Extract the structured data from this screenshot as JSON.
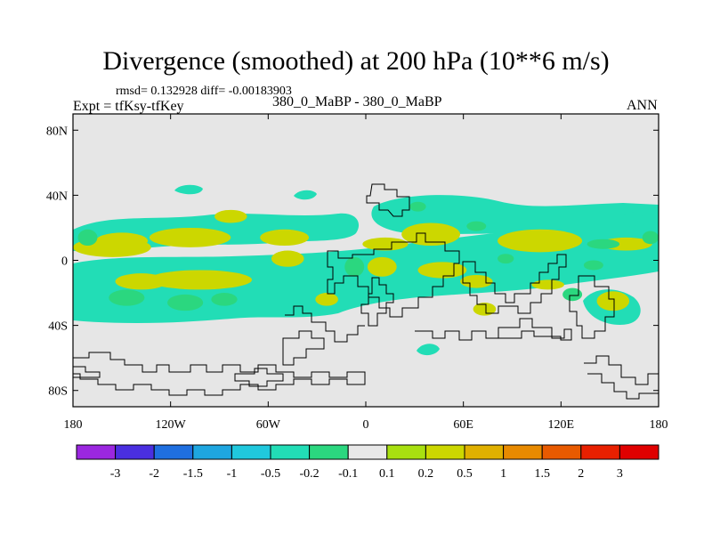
{
  "chart_data": {
    "type": "heatmap",
    "title": "Divergence (smoothed) at 200 hPa (10**6 m/s)",
    "stats_line": "rmsd= 0.132928 diff= -0.00183903",
    "experiment": "Expt = tfKsy-tfKey",
    "case_label": "380_0_MaBP - 380_0_MaBP",
    "season": "ANN",
    "x_axis": {
      "range": [
        -180,
        180
      ],
      "ticks": [
        {
          "value": -180,
          "label": "180"
        },
        {
          "value": -120,
          "label": "120W"
        },
        {
          "value": -60,
          "label": "60W"
        },
        {
          "value": 0,
          "label": "0"
        },
        {
          "value": 60,
          "label": "60E"
        },
        {
          "value": 120,
          "label": "120E"
        },
        {
          "value": 180,
          "label": "180"
        }
      ]
    },
    "y_axis": {
      "range": [
        -90,
        90
      ],
      "ticks": [
        {
          "value": 80,
          "label": "80N"
        },
        {
          "value": 40,
          "label": "40N"
        },
        {
          "value": 0,
          "label": "0"
        },
        {
          "value": -40,
          "label": "40S"
        },
        {
          "value": -80,
          "label": "80S"
        }
      ]
    },
    "colorbar": {
      "labels": [
        "-3",
        "-2",
        "-1.5",
        "-1",
        "-0.5",
        "-0.2",
        "-0.1",
        "0.1",
        "0.2",
        "0.5",
        "1",
        "1.5",
        "2",
        "3"
      ],
      "colors": [
        "#9b27e0",
        "#4a2fe0",
        "#1f6fe0",
        "#1ea6e0",
        "#20c8dd",
        "#22ddb6",
        "#2bd77f",
        "#e8e8e8",
        "#a8e010",
        "#ccd700",
        "#e0b000",
        "#e88a00",
        "#e85a00",
        "#e82000",
        "#e00000"
      ]
    },
    "regions": [
      {
        "value": 0.2,
        "lon": -156,
        "lat": 8,
        "rx": 24,
        "ry": 6
      },
      {
        "value": 0.2,
        "lon": -150,
        "lat": 12,
        "rx": 16,
        "ry": 5
      },
      {
        "value": 0.2,
        "lon": -108,
        "lat": 14,
        "rx": 25,
        "ry": 6
      },
      {
        "value": 0.2,
        "lon": -50,
        "lat": 14,
        "rx": 15,
        "ry": 5
      },
      {
        "value": 0.2,
        "lon": -102,
        "lat": -12,
        "rx": 32,
        "ry": 6
      },
      {
        "value": 0.2,
        "lon": -138,
        "lat": -13,
        "rx": 16,
        "ry": 5
      },
      {
        "value": 0.2,
        "lon": -48,
        "lat": 1,
        "rx": 10,
        "ry": 5
      },
      {
        "value": 0.2,
        "lon": -83,
        "lat": 27,
        "rx": 10,
        "ry": 4
      },
      {
        "value": 0.2,
        "lon": 12,
        "lat": 10,
        "rx": 14,
        "ry": 4
      },
      {
        "value": 0.2,
        "lon": 40,
        "lat": 16,
        "rx": 18,
        "ry": 7
      },
      {
        "value": 0.2,
        "lon": 107,
        "lat": 12,
        "rx": 26,
        "ry": 7
      },
      {
        "value": 0.2,
        "lon": 160,
        "lat": 10,
        "rx": 16,
        "ry": 4
      },
      {
        "value": 0.2,
        "lon": 10,
        "lat": -4,
        "rx": 9,
        "ry": 6
      },
      {
        "value": 0.2,
        "lon": 47,
        "lat": -6,
        "rx": 15,
        "ry": 5
      },
      {
        "value": 0.2,
        "lon": 68,
        "lat": -13,
        "rx": 10,
        "ry": 4
      },
      {
        "value": 0.2,
        "lon": -24,
        "lat": -24,
        "rx": 7,
        "ry": 4
      },
      {
        "value": 0.2,
        "lon": 152,
        "lat": -25,
        "rx": 10,
        "ry": 6
      },
      {
        "value": 0.2,
        "lon": 73,
        "lat": -30,
        "rx": 7,
        "ry": 4
      },
      {
        "value": 0.2,
        "lon": 112,
        "lat": -15,
        "rx": 10,
        "ry": 3
      },
      {
        "value": -0.2,
        "lon": -171,
        "lat": 14,
        "rx": 6,
        "ry": 5
      },
      {
        "value": -0.2,
        "lon": -147,
        "lat": -23,
        "rx": 11,
        "ry": 5
      },
      {
        "value": -0.2,
        "lon": -111,
        "lat": -26,
        "rx": 11,
        "ry": 5
      },
      {
        "value": -0.2,
        "lon": -87,
        "lat": -24,
        "rx": 8,
        "ry": 4
      },
      {
        "value": -0.2,
        "lon": -7,
        "lat": -4,
        "rx": 6,
        "ry": 6
      },
      {
        "value": -0.2,
        "lon": 32,
        "lat": 33,
        "rx": 5,
        "ry": 3
      },
      {
        "value": -0.2,
        "lon": 68,
        "lat": 21,
        "rx": 6,
        "ry": 3
      },
      {
        "value": -0.2,
        "lon": 146,
        "lat": 10,
        "rx": 10,
        "ry": 3
      },
      {
        "value": -0.2,
        "lon": 175,
        "lat": 14,
        "rx": 5,
        "ry": 4
      },
      {
        "value": -0.2,
        "lon": 127,
        "lat": -21,
        "rx": 6,
        "ry": 4
      },
      {
        "value": -0.2,
        "lon": 86,
        "lat": 1,
        "rx": 5,
        "ry": 3
      },
      {
        "value": -0.2,
        "lon": 140,
        "lat": -3,
        "rx": 6,
        "ry": 3
      }
    ]
  }
}
